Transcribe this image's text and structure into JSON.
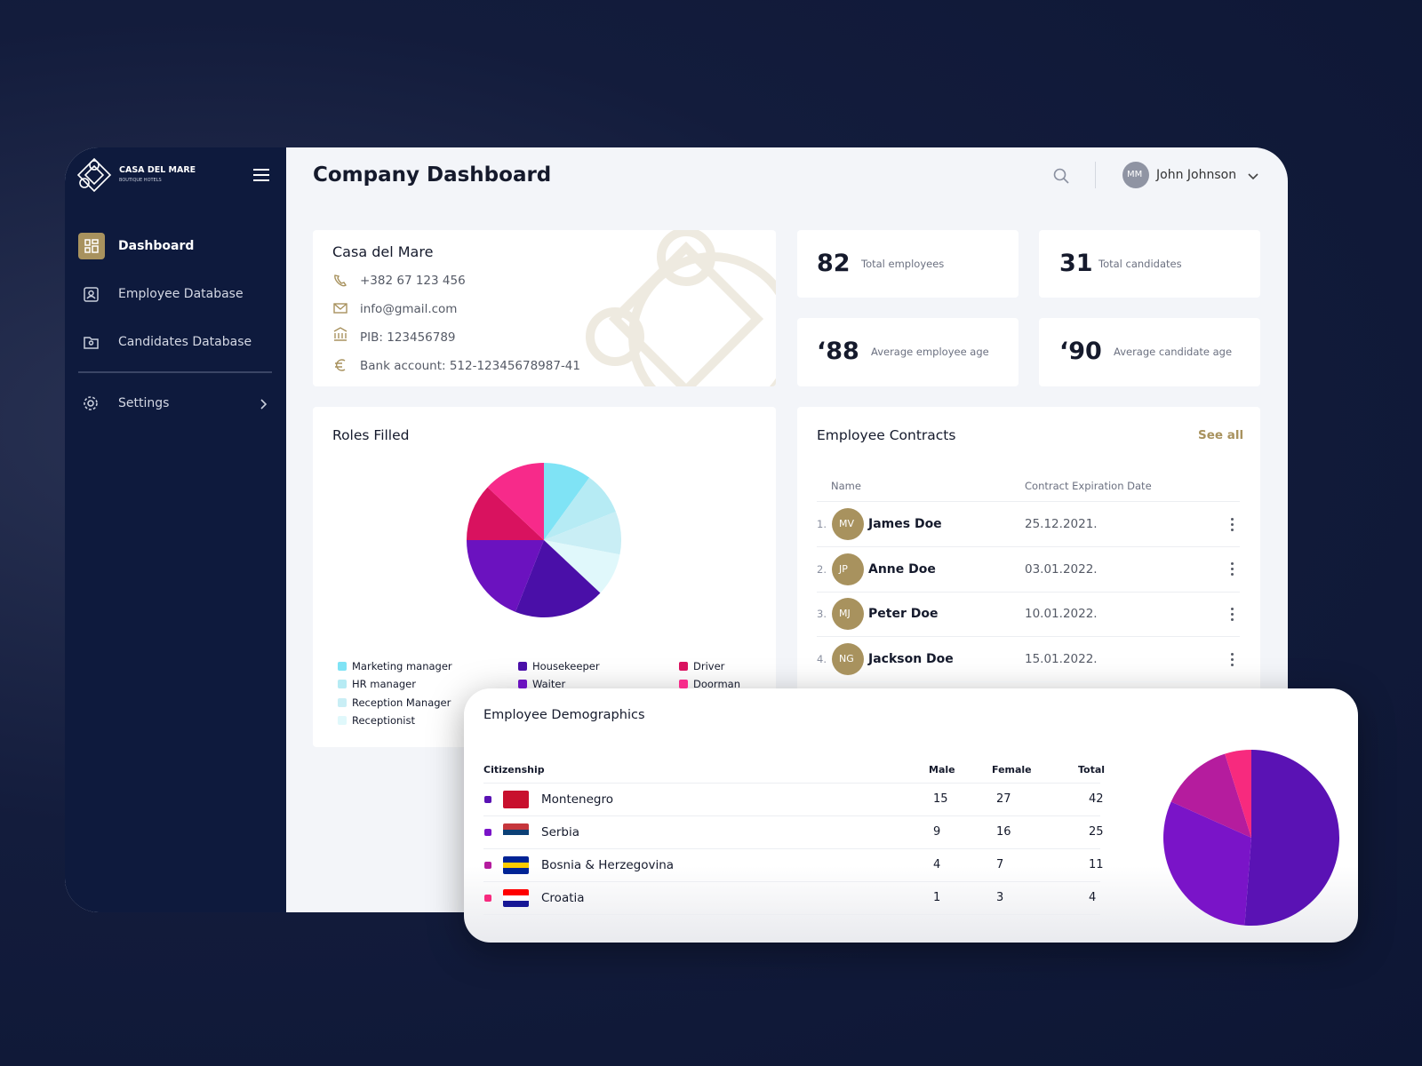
{
  "sidebar": {
    "brand": "CASA DEL MARE",
    "brand_sub": "BOUTIQUE HOTELS",
    "nav": [
      "Dashboard",
      "Employee Database",
      "Candidates Database",
      "Settings"
    ]
  },
  "header": {
    "title": "Company Dashboard",
    "user_initials": "MM",
    "user_name": "John Johnson"
  },
  "company": {
    "name": "Casa del Mare",
    "phone": "+382 67 123 456",
    "email": "info@gmail.com",
    "pib": "PIB: 123456789",
    "bank": "Bank account: 512-12345678987-41"
  },
  "stats": [
    {
      "value": 82,
      "label": "Total employees"
    },
    {
      "value": 31,
      "label": "Total candidates"
    },
    {
      "value": "‘88",
      "label": "Average employee age"
    },
    {
      "value": "‘90",
      "label": "Average candidate age"
    }
  ],
  "roles_filled": {
    "title": "Roles Filled",
    "chart": {
      "type": "pie",
      "categories": [
        "Marketing manager",
        "HR manager",
        "Reception Manager",
        "Receptionist",
        "Housekeeper",
        "Waiter",
        "Driver",
        "Doorman"
      ],
      "values": [
        10,
        9,
        9,
        9,
        19,
        19,
        12,
        13
      ],
      "colors": [
        "#7fe3f5",
        "#b6ebf4",
        "#c9eef5",
        "#e0f8fb",
        "#4a0fa8",
        "#6b12bf",
        "#d9125f",
        "#f72a8a"
      ]
    }
  },
  "contracts": {
    "title": "Employee Contracts",
    "link": "See all",
    "columns": [
      "Name",
      "Contract Expiration Date"
    ],
    "rows": [
      {
        "index": "1.",
        "initials": "MV",
        "name": "James Doe",
        "date": "25.12.2021."
      },
      {
        "index": "2.",
        "initials": "JP",
        "name": "Anne Doe",
        "date": "03.01.2022."
      },
      {
        "index": "3.",
        "initials": "MJ",
        "name": "Peter Doe",
        "date": "10.01.2022."
      },
      {
        "index": "4.",
        "initials": "NG",
        "name": "Jackson Doe",
        "date": "15.01.2022."
      }
    ]
  },
  "demographics": {
    "title": "Employee Demographics",
    "columns": [
      "Citizenship",
      "Male",
      "Female",
      "Total"
    ],
    "rows": [
      [
        "Montenegro",
        15,
        27,
        42
      ],
      [
        "Serbia",
        9,
        16,
        25
      ],
      [
        "Bosnia & Herzegovina",
        4,
        7,
        11
      ],
      [
        "Croatia",
        1,
        3,
        4
      ]
    ],
    "colors": [
      "#5a12b4",
      "#7a14c8",
      "#b51c9e",
      "#f72a7e"
    ]
  }
}
